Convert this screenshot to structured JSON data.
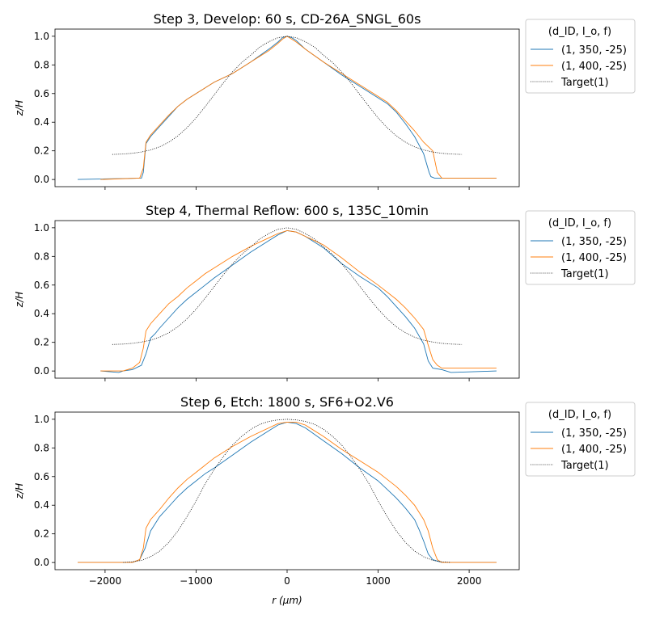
{
  "chart_data": [
    {
      "type": "line",
      "title": "Step 3, Develop: 60 s, CD-26A_SNGL_60s",
      "ylabel": "z/H",
      "xlabel": "",
      "xlim": [
        -2550,
        2550
      ],
      "ylim": [
        -0.05,
        1.05
      ],
      "xticks": [
        -2000,
        -1000,
        0,
        1000,
        2000
      ],
      "yticks": [
        0.0,
        0.2,
        0.4,
        0.6,
        0.8,
        1.0
      ],
      "xtick_labels_visible": false,
      "legend": {
        "title": "(d_ID, I_o, f)",
        "position": "outside-right",
        "entries": [
          "(1, 350, -25)",
          "(1, 400, -25)",
          "Target(1)"
        ]
      },
      "series": [
        {
          "name": "(1, 350, -25)",
          "color": "#1f77b4",
          "style": "solid",
          "x": [
            -2300,
            -1600,
            -1580,
            -1550,
            -1500,
            -1400,
            -1300,
            -1200,
            -1100,
            -1000,
            -900,
            -800,
            -600,
            -400,
            -200,
            -100,
            -50,
            0,
            50,
            100,
            200,
            400,
            600,
            800,
            1000,
            1100,
            1200,
            1300,
            1400,
            1500,
            1560,
            1580,
            1620,
            2300
          ],
          "y": [
            0.0,
            0.01,
            0.05,
            0.25,
            0.3,
            0.37,
            0.44,
            0.51,
            0.56,
            0.6,
            0.64,
            0.68,
            0.74,
            0.82,
            0.91,
            0.96,
            0.99,
            1.0,
            0.99,
            0.97,
            0.91,
            0.82,
            0.73,
            0.65,
            0.57,
            0.53,
            0.47,
            0.39,
            0.3,
            0.18,
            0.05,
            0.02,
            0.01,
            0.01
          ]
        },
        {
          "name": "(1, 400, -25)",
          "color": "#ff7f0e",
          "style": "solid",
          "x": [
            -2050,
            -1620,
            -1580,
            -1550,
            -1500,
            -1400,
            -1300,
            -1200,
            -1100,
            -1000,
            -900,
            -800,
            -600,
            -400,
            -200,
            -100,
            -50,
            0,
            50,
            100,
            200,
            400,
            600,
            800,
            1000,
            1100,
            1200,
            1300,
            1400,
            1500,
            1600,
            1650,
            1700,
            2300
          ],
          "y": [
            0.0,
            0.01,
            0.08,
            0.26,
            0.31,
            0.38,
            0.45,
            0.51,
            0.56,
            0.6,
            0.64,
            0.68,
            0.74,
            0.82,
            0.9,
            0.95,
            0.98,
            1.0,
            0.98,
            0.96,
            0.91,
            0.82,
            0.74,
            0.66,
            0.58,
            0.54,
            0.48,
            0.41,
            0.34,
            0.26,
            0.2,
            0.05,
            0.01,
            0.01
          ]
        },
        {
          "name": "Target(1)",
          "color": "#000000",
          "style": "dotted",
          "x": [
            -1920,
            -1800,
            -1700,
            -1600,
            -1500,
            -1400,
            -1300,
            -1200,
            -1100,
            -1000,
            -900,
            -800,
            -700,
            -600,
            -500,
            -400,
            -300,
            -200,
            -100,
            0,
            100,
            200,
            300,
            400,
            500,
            600,
            700,
            800,
            900,
            1000,
            1100,
            1200,
            1300,
            1400,
            1500,
            1600,
            1700,
            1800,
            1920
          ],
          "y": [
            0.175,
            0.178,
            0.183,
            0.192,
            0.206,
            0.228,
            0.26,
            0.304,
            0.361,
            0.43,
            0.509,
            0.592,
            0.675,
            0.751,
            0.816,
            0.868,
            0.925,
            0.962,
            0.99,
            1.0,
            0.99,
            0.962,
            0.925,
            0.868,
            0.816,
            0.751,
            0.675,
            0.592,
            0.509,
            0.43,
            0.361,
            0.304,
            0.26,
            0.228,
            0.206,
            0.192,
            0.183,
            0.178,
            0.175
          ]
        }
      ]
    },
    {
      "type": "line",
      "title": "Step 4, Thermal Reflow: 600 s, 135C_10min",
      "ylabel": "z/H",
      "xlabel": "",
      "xlim": [
        -2550,
        2550
      ],
      "ylim": [
        -0.05,
        1.05
      ],
      "xticks": [
        -2000,
        -1000,
        0,
        1000,
        2000
      ],
      "yticks": [
        0.0,
        0.2,
        0.4,
        0.6,
        0.8,
        1.0
      ],
      "xtick_labels_visible": false,
      "legend": {
        "title": "(d_ID, I_o, f)",
        "position": "outside-right",
        "entries": [
          "(1, 350, -25)",
          "(1, 400, -25)",
          "Target(1)"
        ]
      },
      "series": [
        {
          "name": "(1, 350, -25)",
          "color": "#1f77b4",
          "style": "solid",
          "x": [
            -2050,
            -1850,
            -1800,
            -1700,
            -1600,
            -1550,
            -1500,
            -1450,
            -1400,
            -1300,
            -1200,
            -1100,
            -1000,
            -900,
            -800,
            -600,
            -400,
            -200,
            -100,
            0,
            100,
            200,
            300,
            400,
            600,
            800,
            1000,
            1100,
            1200,
            1300,
            1400,
            1500,
            1550,
            1600,
            1700,
            1800,
            2300
          ],
          "y": [
            0.0,
            -0.01,
            0.0,
            0.01,
            0.04,
            0.12,
            0.23,
            0.26,
            0.3,
            0.37,
            0.44,
            0.5,
            0.55,
            0.6,
            0.65,
            0.74,
            0.83,
            0.91,
            0.95,
            0.98,
            0.97,
            0.94,
            0.9,
            0.86,
            0.75,
            0.66,
            0.58,
            0.52,
            0.45,
            0.38,
            0.3,
            0.19,
            0.07,
            0.02,
            0.01,
            -0.01,
            0.0
          ]
        },
        {
          "name": "(1, 400, -25)",
          "color": "#ff7f0e",
          "style": "solid",
          "x": [
            -2050,
            -1900,
            -1800,
            -1700,
            -1620,
            -1580,
            -1550,
            -1500,
            -1400,
            -1300,
            -1200,
            -1100,
            -1000,
            -900,
            -800,
            -600,
            -400,
            -200,
            -100,
            0,
            100,
            200,
            300,
            400,
            600,
            800,
            1000,
            1100,
            1200,
            1300,
            1400,
            1500,
            1550,
            1600,
            1650,
            1700,
            2300
          ],
          "y": [
            0.0,
            0.0,
            0.0,
            0.02,
            0.06,
            0.16,
            0.28,
            0.33,
            0.4,
            0.47,
            0.52,
            0.58,
            0.63,
            0.68,
            0.72,
            0.8,
            0.87,
            0.93,
            0.96,
            0.98,
            0.97,
            0.94,
            0.91,
            0.88,
            0.79,
            0.69,
            0.6,
            0.55,
            0.5,
            0.44,
            0.37,
            0.29,
            0.18,
            0.08,
            0.04,
            0.02,
            0.02
          ]
        },
        {
          "name": "Target(1)",
          "color": "#000000",
          "style": "dotted",
          "x": [
            -1920,
            -1800,
            -1700,
            -1600,
            -1500,
            -1400,
            -1300,
            -1200,
            -1100,
            -1000,
            -900,
            -800,
            -700,
            -600,
            -500,
            -400,
            -300,
            -200,
            -100,
            0,
            100,
            200,
            300,
            400,
            500,
            600,
            700,
            800,
            900,
            1000,
            1100,
            1200,
            1300,
            1400,
            1500,
            1600,
            1700,
            1800,
            1920
          ],
          "y": [
            0.185,
            0.188,
            0.193,
            0.202,
            0.215,
            0.236,
            0.267,
            0.309,
            0.364,
            0.432,
            0.509,
            0.59,
            0.672,
            0.748,
            0.813,
            0.866,
            0.922,
            0.96,
            0.989,
            1.0,
            0.989,
            0.96,
            0.922,
            0.866,
            0.813,
            0.748,
            0.672,
            0.59,
            0.509,
            0.432,
            0.364,
            0.309,
            0.267,
            0.236,
            0.215,
            0.202,
            0.193,
            0.188,
            0.185
          ]
        }
      ]
    },
    {
      "type": "line",
      "title": "Step 6, Etch: 1800 s, SF6+O2.V6",
      "ylabel": "z/H",
      "xlabel": "r (μm)",
      "xlim": [
        -2550,
        2550
      ],
      "ylim": [
        -0.05,
        1.05
      ],
      "xticks": [
        -2000,
        -1000,
        0,
        1000,
        2000
      ],
      "xtick_labels": [
        "−2000",
        "−1000",
        "0",
        "1000",
        "2000"
      ],
      "yticks": [
        0.0,
        0.2,
        0.4,
        0.6,
        0.8,
        1.0
      ],
      "xtick_labels_visible": true,
      "legend": {
        "title": "(d_ID, I_o, f)",
        "position": "outside-right",
        "entries": [
          "(1, 350, -25)",
          "(1, 400, -25)",
          "Target(1)"
        ]
      },
      "series": [
        {
          "name": "(1, 350, -25)",
          "color": "#1f77b4",
          "style": "solid",
          "x": [
            -2300,
            -1700,
            -1620,
            -1560,
            -1500,
            -1450,
            -1400,
            -1300,
            -1200,
            -1100,
            -1000,
            -900,
            -800,
            -600,
            -400,
            -200,
            -100,
            0,
            100,
            200,
            400,
            600,
            800,
            1000,
            1100,
            1200,
            1300,
            1400,
            1450,
            1500,
            1550,
            1600,
            1700,
            2300
          ],
          "y": [
            0.0,
            0.0,
            0.02,
            0.1,
            0.22,
            0.27,
            0.32,
            0.39,
            0.46,
            0.52,
            0.57,
            0.62,
            0.66,
            0.75,
            0.84,
            0.92,
            0.96,
            0.98,
            0.97,
            0.94,
            0.85,
            0.76,
            0.66,
            0.57,
            0.51,
            0.45,
            0.38,
            0.3,
            0.23,
            0.15,
            0.06,
            0.02,
            0.0,
            0.0
          ]
        },
        {
          "name": "(1, 400, -25)",
          "color": "#ff7f0e",
          "style": "solid",
          "x": [
            -2300,
            -1700,
            -1620,
            -1580,
            -1550,
            -1500,
            -1400,
            -1300,
            -1200,
            -1100,
            -1000,
            -900,
            -800,
            -600,
            -400,
            -200,
            -100,
            0,
            100,
            200,
            400,
            600,
            800,
            1000,
            1100,
            1200,
            1300,
            1400,
            1500,
            1550,
            1600,
            1650,
            1700,
            2300
          ],
          "y": [
            0.0,
            0.0,
            0.02,
            0.1,
            0.24,
            0.3,
            0.37,
            0.45,
            0.52,
            0.58,
            0.63,
            0.68,
            0.73,
            0.81,
            0.88,
            0.94,
            0.97,
            0.98,
            0.98,
            0.96,
            0.88,
            0.79,
            0.71,
            0.63,
            0.58,
            0.53,
            0.47,
            0.4,
            0.3,
            0.22,
            0.1,
            0.02,
            0.0,
            0.0
          ]
        },
        {
          "name": "Target(1)",
          "color": "#000000",
          "style": "dotted",
          "x": [
            -1800,
            -1700,
            -1600,
            -1500,
            -1400,
            -1300,
            -1200,
            -1100,
            -1000,
            -900,
            -800,
            -700,
            -600,
            -500,
            -400,
            -300,
            -200,
            -100,
            0,
            100,
            200,
            300,
            400,
            500,
            600,
            700,
            800,
            900,
            1000,
            1100,
            1200,
            1300,
            1400,
            1500,
            1600,
            1700,
            1800
          ],
          "y": [
            0.0,
            0.005,
            0.015,
            0.04,
            0.08,
            0.14,
            0.22,
            0.32,
            0.43,
            0.55,
            0.65,
            0.74,
            0.82,
            0.88,
            0.93,
            0.965,
            0.985,
            0.996,
            1.0,
            0.996,
            0.985,
            0.965,
            0.93,
            0.88,
            0.82,
            0.74,
            0.65,
            0.55,
            0.43,
            0.32,
            0.22,
            0.14,
            0.08,
            0.04,
            0.015,
            0.005,
            0.0
          ]
        }
      ]
    }
  ]
}
